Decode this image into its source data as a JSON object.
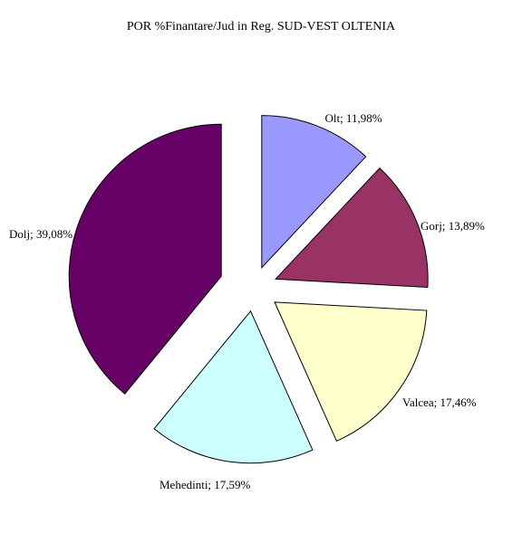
{
  "chart_data": {
    "type": "pie",
    "title": "POR %Finantare/Jud in Reg. SUD-VEST OLTENIA",
    "legend": "none",
    "slices": [
      {
        "name": "Olt",
        "value": 11.98,
        "label": "Olt; 11,98%",
        "color": "#9999ff"
      },
      {
        "name": "Gorj",
        "value": 13.89,
        "label": "Gorj; 13,89%",
        "color": "#993366"
      },
      {
        "name": "Valcea",
        "value": 17.46,
        "label": "Valcea; 17,46%",
        "color": "#ffffcc"
      },
      {
        "name": "Mehedinti",
        "value": 17.59,
        "label": "Mehedinti; 17,59%",
        "color": "#ccffff"
      },
      {
        "name": "Dolj",
        "value": 39.08,
        "label": "Dolj; 39,08%",
        "color": "#660066"
      }
    ]
  }
}
